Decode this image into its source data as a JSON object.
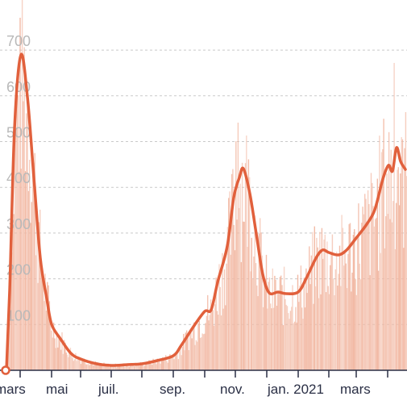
{
  "chart_data": {
    "type": "bar",
    "title": "",
    "xlabel": "",
    "ylabel": "",
    "ylim": [
      0,
      800
    ],
    "y_ticks": [
      100,
      200,
      300,
      400,
      500,
      600,
      700
    ],
    "grid": true,
    "x_tick_labels": [
      "mars",
      "mai",
      "juil.",
      "sep.",
      "nov.",
      "jan. 2021",
      "mars"
    ],
    "colors": {
      "bars": "#f2b9a4",
      "line": "#e1603c",
      "grid": "#c9c9c9",
      "axis": "#2a2f45",
      "ytext": "#b9b9b9"
    },
    "daily_series": {
      "kind": "bars",
      "start_month": "mars 2020",
      "end_month": "avril 2021",
      "peaks": [
        {
          "month": "mars",
          "value": 760
        },
        {
          "month": "avril",
          "value": 450
        },
        {
          "month": "mai",
          "value": 70
        },
        {
          "month": "juil.",
          "value": 12
        },
        {
          "month": "sep.",
          "value": 60
        },
        {
          "month": "oct.",
          "value": 300
        },
        {
          "month": "nov.",
          "value": 540
        },
        {
          "month": "déc.",
          "value": 260
        },
        {
          "month": "jan. 2021",
          "value": 290
        },
        {
          "month": "fév.",
          "value": 370
        },
        {
          "month": "mars",
          "value": 500
        },
        {
          "month": "avril",
          "value": 680
        }
      ]
    },
    "average_series": {
      "kind": "line",
      "points": [
        {
          "x": "mars 1",
          "y": 0
        },
        {
          "x": "mars 20",
          "y": 690
        },
        {
          "x": "avril 10",
          "y": 450
        },
        {
          "x": "avril 25",
          "y": 200
        },
        {
          "x": "mai 10",
          "y": 100
        },
        {
          "x": "juin 1",
          "y": 30
        },
        {
          "x": "juil. 1",
          "y": 10
        },
        {
          "x": "août 1",
          "y": 12
        },
        {
          "x": "sep. 1",
          "y": 30
        },
        {
          "x": "sep. 20",
          "y": 120
        },
        {
          "x": "oct. 10",
          "y": 200
        },
        {
          "x": "oct. 25",
          "y": 400
        },
        {
          "x": "nov. 1",
          "y": 440
        },
        {
          "x": "nov. 20",
          "y": 250
        },
        {
          "x": "déc. 1",
          "y": 170
        },
        {
          "x": "déc. 20",
          "y": 170
        },
        {
          "x": "jan. 2021",
          "y": 175
        },
        {
          "x": "jan. 20",
          "y": 260
        },
        {
          "x": "fév. 10",
          "y": 255
        },
        {
          "x": "mars 1",
          "y": 320
        },
        {
          "x": "mars 25",
          "y": 440
        },
        {
          "x": "avril 5",
          "y": 490
        },
        {
          "x": "avril 10",
          "y": 445
        }
      ]
    }
  }
}
